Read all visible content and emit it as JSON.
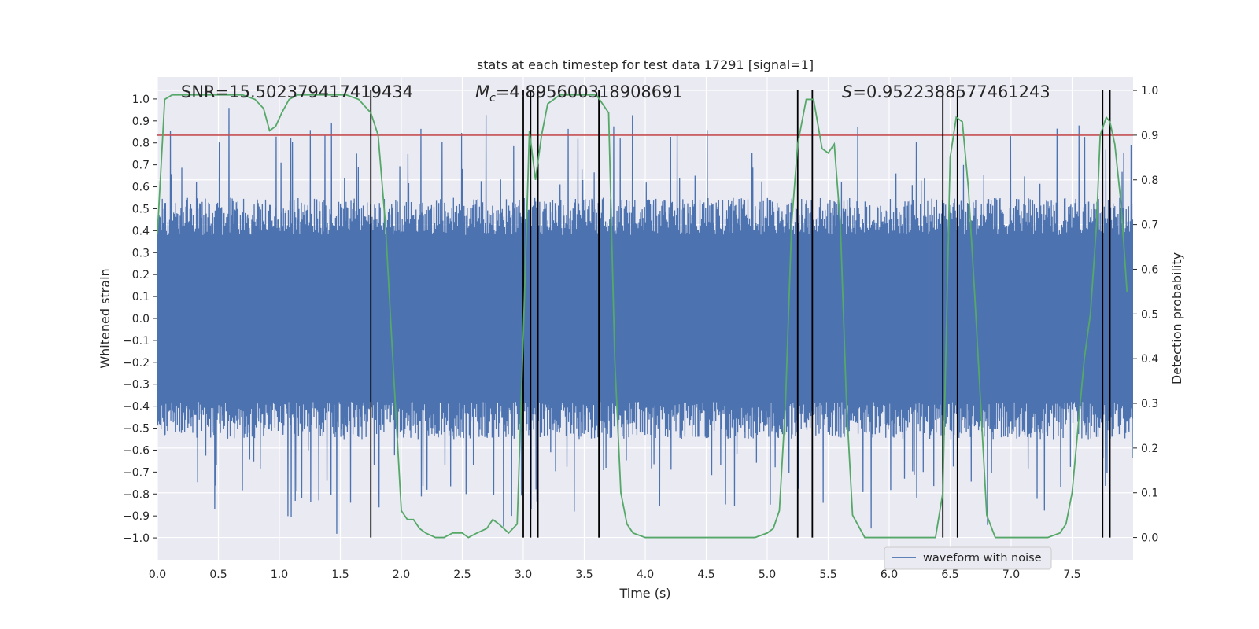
{
  "chart_data": {
    "type": "line",
    "title": "stats at each timestep for test data 17291 [signal=1]",
    "xlabel": "Time (s)",
    "ylabel_left": "Whitened strain",
    "ylabel_right": "Detection probability",
    "xlim": [
      0,
      8
    ],
    "ylim_left": [
      -1.1,
      1.1
    ],
    "ylim_right": [
      -0.05,
      1.03
    ],
    "x_ticks": [
      "0.0",
      "0.5",
      "1.0",
      "1.5",
      "2.0",
      "2.5",
      "3.0",
      "3.5",
      "4.0",
      "4.5",
      "5.0",
      "5.5",
      "6.0",
      "6.5",
      "7.0",
      "7.5"
    ],
    "y_ticks_left": [
      "1.0",
      "0.9",
      "0.8",
      "0.7",
      "0.6",
      "0.5",
      "0.4",
      "0.3",
      "0.2",
      "0.1",
      "0.0",
      "-0.1",
      "-0.2",
      "-0.3",
      "-0.4",
      "-0.5",
      "-0.6",
      "-0.7",
      "-0.8",
      "-0.9",
      "-1.0"
    ],
    "y_ticks_right": [
      "1.0",
      "0.9",
      "0.8",
      "0.7",
      "0.6",
      "0.5",
      "0.4",
      "0.3",
      "0.2",
      "0.1",
      "0.0"
    ],
    "annotations": {
      "snr": "SNR=15.502379417419434",
      "mc_symbol": "M",
      "mc_sub": "c",
      "mc_value": "=4.895600318908691",
      "s_symbol": "S",
      "s_value": "=0.9522388577461243"
    },
    "threshold": {
      "value": 0.9,
      "axis": "right",
      "color": "#c44e52"
    },
    "event_lines": [
      1.75,
      3.0,
      3.06,
      3.12,
      3.62,
      5.25,
      5.37,
      6.44,
      6.56,
      7.75,
      7.81
    ],
    "series": [
      {
        "name": "waveform with noise",
        "axis": "left",
        "color": "#4c72b0",
        "style": "dense noise, approx. ±0.5 with peaks to ±1.0"
      },
      {
        "axis": "right",
        "color": "#55a868",
        "x": [
          0.0,
          0.06,
          0.12,
          0.2,
          0.3,
          0.4,
          0.5,
          0.6,
          0.7,
          0.8,
          0.87,
          0.92,
          0.97,
          1.02,
          1.08,
          1.15,
          1.25,
          1.35,
          1.45,
          1.55,
          1.65,
          1.75,
          1.81,
          1.87,
          1.92,
          2.0,
          2.05,
          2.1,
          2.15,
          2.2,
          2.28,
          2.35,
          2.42,
          2.5,
          2.55,
          2.62,
          2.7,
          2.75,
          2.8,
          2.88,
          2.95,
          3.0,
          3.05,
          3.1,
          3.15,
          3.2,
          3.3,
          3.4,
          3.5,
          3.6,
          3.7,
          3.75,
          3.8,
          3.85,
          3.9,
          4.0,
          4.2,
          4.4,
          4.6,
          4.8,
          4.9,
          5.0,
          5.05,
          5.1,
          5.15,
          5.2,
          5.25,
          5.32,
          5.38,
          5.45,
          5.5,
          5.55,
          5.6,
          5.65,
          5.7,
          5.8,
          5.9,
          6.0,
          6.1,
          6.2,
          6.3,
          6.38,
          6.44,
          6.5,
          6.55,
          6.6,
          6.65,
          6.7,
          6.75,
          6.8,
          6.87,
          6.93,
          7.0,
          7.1,
          7.2,
          7.3,
          7.4,
          7.45,
          7.5,
          7.55,
          7.6,
          7.65,
          7.7,
          7.73,
          7.78,
          7.81,
          7.85,
          7.9,
          7.95
        ],
        "y": [
          0.68,
          0.98,
          0.99,
          0.99,
          0.99,
          0.99,
          0.99,
          0.99,
          0.99,
          0.98,
          0.96,
          0.91,
          0.92,
          0.95,
          0.98,
          0.99,
          0.99,
          0.99,
          0.99,
          0.99,
          0.98,
          0.95,
          0.9,
          0.7,
          0.45,
          0.06,
          0.04,
          0.04,
          0.02,
          0.01,
          0.0,
          0.0,
          0.01,
          0.01,
          0.0,
          0.01,
          0.02,
          0.04,
          0.03,
          0.01,
          0.03,
          0.45,
          0.91,
          0.8,
          0.9,
          0.97,
          0.99,
          0.99,
          0.99,
          0.99,
          0.95,
          0.4,
          0.1,
          0.03,
          0.01,
          0.0,
          0.0,
          0.0,
          0.0,
          0.0,
          0.0,
          0.01,
          0.02,
          0.06,
          0.3,
          0.7,
          0.88,
          0.98,
          0.98,
          0.87,
          0.86,
          0.88,
          0.7,
          0.3,
          0.05,
          0.0,
          0.0,
          0.0,
          0.0,
          0.0,
          0.0,
          0.0,
          0.1,
          0.85,
          0.94,
          0.93,
          0.78,
          0.55,
          0.3,
          0.05,
          0.0,
          0.0,
          0.0,
          0.0,
          0.0,
          0.0,
          0.01,
          0.03,
          0.1,
          0.25,
          0.4,
          0.5,
          0.7,
          0.9,
          0.94,
          0.93,
          0.88,
          0.75,
          0.55
        ],
        "note": "detection probability"
      }
    ],
    "legend": {
      "position": "lower-right",
      "entries": [
        "waveform with noise"
      ]
    },
    "grid": true,
    "background": "#eaeaf2"
  }
}
